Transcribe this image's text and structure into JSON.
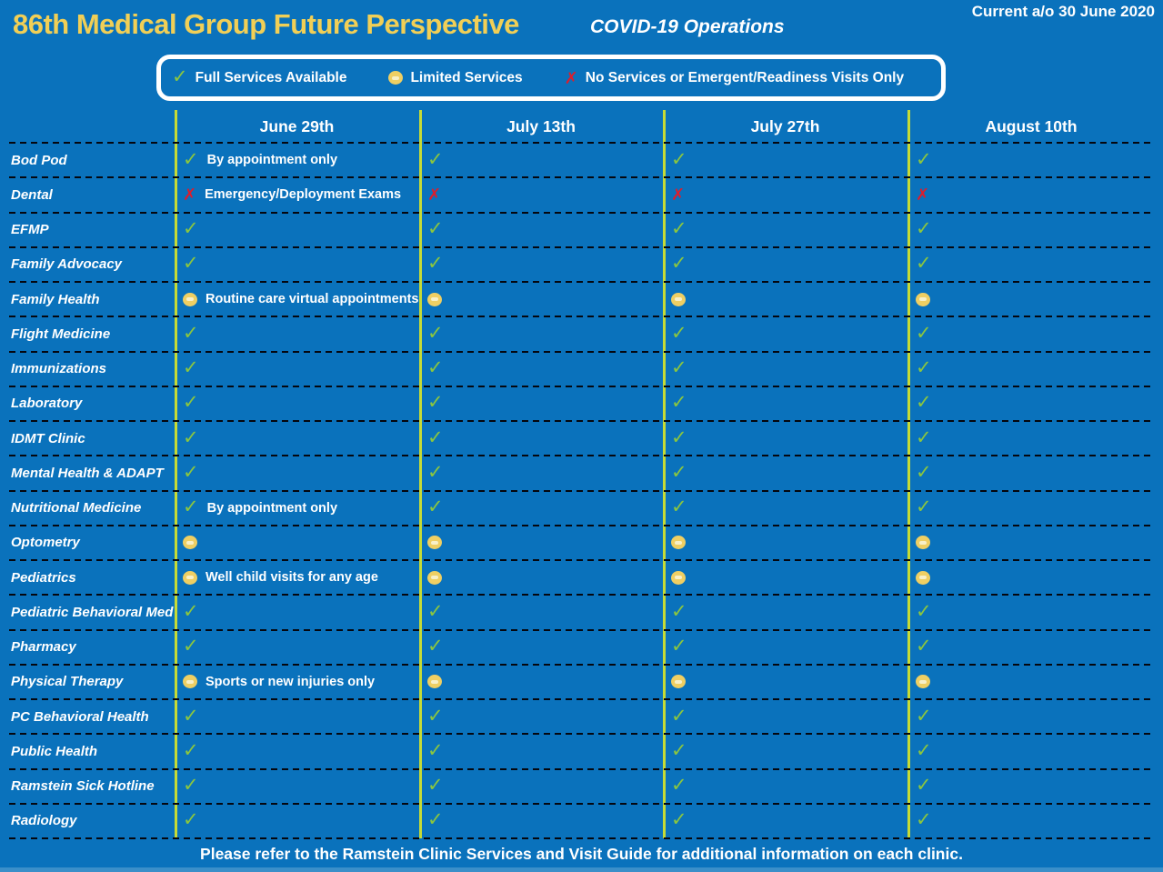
{
  "header": {
    "title": "86th Medical Group Future Perspective",
    "subtitle": "COVID-19 Operations",
    "current_as_of": "Current a/o 30 June 2020"
  },
  "legend": {
    "items": [
      {
        "icon": "check",
        "label": "Full Services Available"
      },
      {
        "icon": "limited",
        "label": "Limited Services"
      },
      {
        "icon": "cross",
        "label": "No Services or Emergent/Readiness Visits Only"
      }
    ]
  },
  "chart_data": {
    "type": "table",
    "title": "86th Medical Group Future Perspective — COVID-19 Operations",
    "columns": [
      "June 29th",
      "July 13th",
      "July 27th",
      "August 10th"
    ],
    "status_key": {
      "full": "Full Services Available",
      "limited": "Limited Services",
      "none": "No Services or Emergent/Readiness Visits Only"
    },
    "rows": [
      {
        "clinic": "Bod Pod",
        "note": "By appointment only",
        "statuses": [
          "full",
          "full",
          "full",
          "full"
        ]
      },
      {
        "clinic": "Dental",
        "note": "Emergency/Deployment Exams",
        "statuses": [
          "none",
          "none",
          "none",
          "none"
        ]
      },
      {
        "clinic": "EFMP",
        "note": "",
        "statuses": [
          "full",
          "full",
          "full",
          "full"
        ]
      },
      {
        "clinic": "Family Advocacy",
        "note": "",
        "statuses": [
          "full",
          "full",
          "full",
          "full"
        ]
      },
      {
        "clinic": "Family Health",
        "note": "Routine care virtual appointments",
        "statuses": [
          "limited",
          "limited",
          "limited",
          "limited"
        ]
      },
      {
        "clinic": "Flight Medicine",
        "note": "",
        "statuses": [
          "full",
          "full",
          "full",
          "full"
        ]
      },
      {
        "clinic": "Immunizations",
        "note": "",
        "statuses": [
          "full",
          "full",
          "full",
          "full"
        ]
      },
      {
        "clinic": "Laboratory",
        "note": "",
        "statuses": [
          "full",
          "full",
          "full",
          "full"
        ]
      },
      {
        "clinic": "IDMT Clinic",
        "note": "",
        "statuses": [
          "full",
          "full",
          "full",
          "full"
        ]
      },
      {
        "clinic": "Mental Health & ADAPT",
        "note": "",
        "statuses": [
          "full",
          "full",
          "full",
          "full"
        ]
      },
      {
        "clinic": "Nutritional Medicine",
        "note": "By appointment only",
        "statuses": [
          "full",
          "full",
          "full",
          "full"
        ]
      },
      {
        "clinic": "Optometry",
        "note": "",
        "statuses": [
          "limited",
          "limited",
          "limited",
          "limited"
        ]
      },
      {
        "clinic": "Pediatrics",
        "note": "Well child visits for any age",
        "statuses": [
          "limited",
          "limited",
          "limited",
          "limited"
        ]
      },
      {
        "clinic": "Pediatric Behavioral Med",
        "note": "",
        "statuses": [
          "full",
          "full",
          "full",
          "full"
        ]
      },
      {
        "clinic": "Pharmacy",
        "note": "",
        "statuses": [
          "full",
          "full",
          "full",
          "full"
        ]
      },
      {
        "clinic": "Physical Therapy",
        "note": "Sports or new injuries only",
        "statuses": [
          "limited",
          "limited",
          "limited",
          "limited"
        ]
      },
      {
        "clinic": "PC Behavioral Health",
        "note": "",
        "statuses": [
          "full",
          "full",
          "full",
          "full"
        ]
      },
      {
        "clinic": "Public Health",
        "note": "",
        "statuses": [
          "full",
          "full",
          "full",
          "full"
        ]
      },
      {
        "clinic": "Ramstein Sick Hotline",
        "note": "",
        "statuses": [
          "full",
          "full",
          "full",
          "full"
        ]
      },
      {
        "clinic": "Radiology",
        "note": "",
        "statuses": [
          "full",
          "full",
          "full",
          "full"
        ]
      }
    ]
  },
  "footer": {
    "text": "Please refer to the Ramstein Clinic Services and Visit Guide for additional information on each clinic."
  },
  "colors": {
    "background": "#0a72bc",
    "title_yellow": "#f1cf56",
    "column_divider_green": "#c6db36",
    "status_full_green": "#8bc63f",
    "status_limited_yellow": "#efcf63",
    "status_none_red": "#dc1e2d",
    "dashed_line": "#05070f"
  }
}
